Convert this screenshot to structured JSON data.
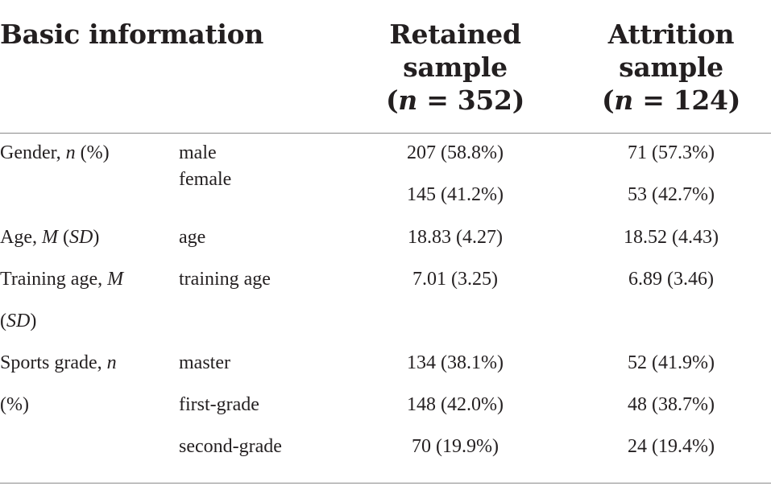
{
  "header": {
    "basic_info": "Basic information",
    "retained": {
      "line1": "Retained",
      "line2": "sample",
      "n_label": "n",
      "n_eq": " = 352)"
    },
    "attrition": {
      "line1": "Attrition",
      "line2": "sample",
      "n_label": "n",
      "n_eq": " = 124)"
    }
  },
  "rows": {
    "gender": {
      "label_text": "Gender, ",
      "label_italic": "n",
      "label_tail": " (%)",
      "male": "male",
      "female": "female",
      "male_retained": "207 (58.8%)",
      "male_attrition": "71 (57.3%)",
      "female_retained": "145 (41.2%)",
      "female_attrition": "53 (42.7%)"
    },
    "age": {
      "label_text": "Age, ",
      "label_italic_m": "M",
      "label_italic_sd": "SD",
      "sub": "age",
      "retained": "18.83 (4.27)",
      "attrition": "18.52 (4.43)"
    },
    "training": {
      "label_line1": "Training age, ",
      "label_italic_m": "M",
      "label_italic_sd": "SD",
      "sub": "training age",
      "retained": "7.01 (3.25)",
      "attrition": "6.89 (3.46)"
    },
    "sports": {
      "label_line1": "Sports grade, ",
      "label_italic_n": "n",
      "label_line2": "(%)",
      "master": "master",
      "first": "first-grade",
      "second": "second-grade",
      "master_retained": "134 (38.1%)",
      "master_attrition": "52 (41.9%)",
      "first_retained": "148 (42.0%)",
      "first_attrition": "48 (38.7%)",
      "second_retained": "70 (19.9%)",
      "second_attrition": "24 (19.4%)"
    }
  }
}
